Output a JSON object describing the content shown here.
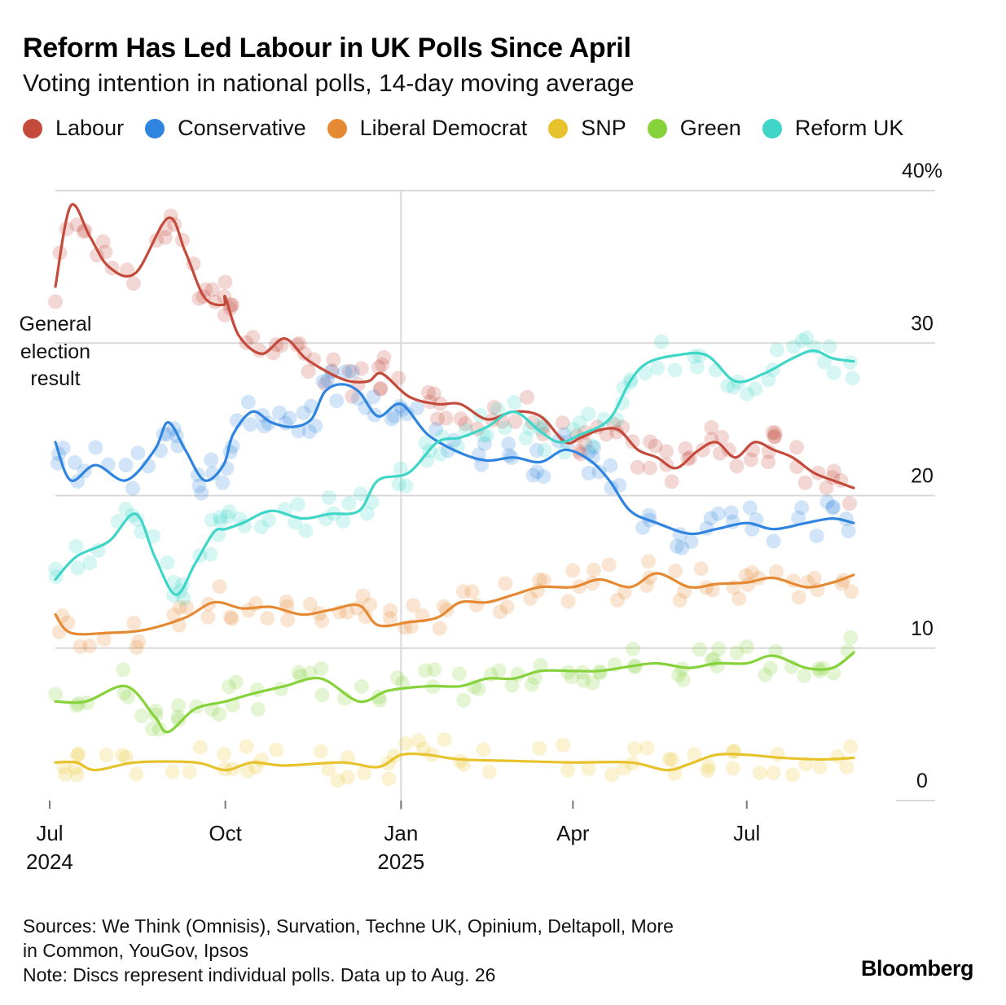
{
  "header": {
    "title": "Reform Has Led Labour in UK Polls Since April",
    "subtitle": "Voting intention in national polls, 14-day moving average"
  },
  "legend": [
    {
      "label": "Labour",
      "color": "#c44a3b"
    },
    {
      "label": "Conservative",
      "color": "#2f84e0"
    },
    {
      "label": "Liberal Democrat",
      "color": "#e58a33"
    },
    {
      "label": "SNP",
      "color": "#e8c22a"
    },
    {
      "label": "Green",
      "color": "#86d23a"
    },
    {
      "label": "Reform UK",
      "color": "#3fd6c8"
    }
  ],
  "annotation": {
    "line1": "General",
    "line2": "election",
    "line3": "result"
  },
  "footer": {
    "sources_line1": "Sources: We Think (Omnisis), Survation, Techne UK, Opinium, Deltapoll, More",
    "sources_line2": "in Common, YouGov, Ipsos",
    "note": "Note: Discs represent individual polls. Data up to Aug. 26",
    "brand": "Bloomberg"
  },
  "chart_data": {
    "type": "line",
    "title": "Reform Has Led Labour in UK Polls Since April",
    "subtitle": "Voting intention in national polls, 14-day moving average",
    "y_unit": "%",
    "ylim": [
      0,
      40
    ],
    "y_ticks": [
      {
        "value": 0,
        "label": "0"
      },
      {
        "value": 10,
        "label": "10"
      },
      {
        "value": 20,
        "label": "20"
      },
      {
        "value": 30,
        "label": "30"
      },
      {
        "value": 40,
        "label": "40%"
      }
    ],
    "x_range": [
      "2024-07-04",
      "2025-08-26"
    ],
    "x_ticks": [
      {
        "date": "2024-07-01",
        "label": "Jul",
        "label2": "2024"
      },
      {
        "date": "2024-10-01",
        "label": "Oct",
        "label2": ""
      },
      {
        "date": "2025-01-01",
        "label": "Jan",
        "label2": "2025"
      },
      {
        "date": "2025-04-01",
        "label": "Apr",
        "label2": ""
      },
      {
        "date": "2025-07-01",
        "label": "Jul",
        "label2": ""
      }
    ],
    "grid": {
      "horizontal": true,
      "vertical_at": "2025-01-01"
    },
    "series": [
      {
        "name": "Labour",
        "color": "#c44a3b",
        "points": [
          [
            "2024-07-04",
            33.7
          ],
          [
            "2024-07-12",
            39.0
          ],
          [
            "2024-07-22",
            37.0
          ],
          [
            "2024-08-01",
            35.0
          ],
          [
            "2024-08-15",
            34.6
          ],
          [
            "2024-09-01",
            38.2
          ],
          [
            "2024-09-10",
            36.0
          ],
          [
            "2024-09-20",
            33.0
          ],
          [
            "2024-09-30",
            32.5
          ],
          [
            "2024-10-01",
            33.0
          ],
          [
            "2024-10-08",
            30.5
          ],
          [
            "2024-10-20",
            29.3
          ],
          [
            "2024-11-01",
            30.3
          ],
          [
            "2024-11-12",
            29.0
          ],
          [
            "2024-11-25",
            28.0
          ],
          [
            "2024-12-05",
            27.5
          ],
          [
            "2024-12-15",
            27.5
          ],
          [
            "2024-12-22",
            28.0
          ],
          [
            "2025-01-05",
            26.5
          ],
          [
            "2025-01-20",
            26.0
          ],
          [
            "2025-02-01",
            26.0
          ],
          [
            "2025-02-15",
            25.0
          ],
          [
            "2025-03-01",
            25.5
          ],
          [
            "2025-03-15",
            25.2
          ],
          [
            "2025-03-28",
            23.5
          ],
          [
            "2025-04-05",
            23.8
          ],
          [
            "2025-04-15",
            24.3
          ],
          [
            "2025-04-25",
            24.3
          ],
          [
            "2025-05-05",
            23.0
          ],
          [
            "2025-05-15",
            22.5
          ],
          [
            "2025-05-25",
            21.8
          ],
          [
            "2025-06-05",
            22.9
          ],
          [
            "2025-06-15",
            23.5
          ],
          [
            "2025-06-25",
            22.5
          ],
          [
            "2025-07-05",
            23.5
          ],
          [
            "2025-07-15",
            23.0
          ],
          [
            "2025-07-25",
            22.5
          ],
          [
            "2025-08-05",
            21.5
          ],
          [
            "2025-08-15",
            21.0
          ],
          [
            "2025-08-26",
            20.5
          ]
        ]
      },
      {
        "name": "Conservative",
        "color": "#2f84e0",
        "points": [
          [
            "2024-07-04",
            23.5
          ],
          [
            "2024-07-12",
            21.0
          ],
          [
            "2024-07-25",
            22.0
          ],
          [
            "2024-08-10",
            21.0
          ],
          [
            "2024-08-25",
            23.0
          ],
          [
            "2024-09-01",
            24.8
          ],
          [
            "2024-09-10",
            23.0
          ],
          [
            "2024-09-20",
            21.0
          ],
          [
            "2024-09-30",
            22.0
          ],
          [
            "2024-10-05",
            24.0
          ],
          [
            "2024-10-15",
            25.5
          ],
          [
            "2024-10-25",
            24.8
          ],
          [
            "2024-11-05",
            24.5
          ],
          [
            "2024-11-15",
            25.0
          ],
          [
            "2024-11-22",
            26.8
          ],
          [
            "2024-12-01",
            27.3
          ],
          [
            "2024-12-10",
            26.8
          ],
          [
            "2024-12-20",
            25.2
          ],
          [
            "2025-01-01",
            26.0
          ],
          [
            "2025-01-15",
            24.0
          ],
          [
            "2025-02-01",
            22.8
          ],
          [
            "2025-02-15",
            22.3
          ],
          [
            "2025-03-01",
            22.5
          ],
          [
            "2025-03-15",
            22.2
          ],
          [
            "2025-03-28",
            23.0
          ],
          [
            "2025-04-10",
            22.3
          ],
          [
            "2025-04-20",
            21.0
          ],
          [
            "2025-05-01",
            19.0
          ],
          [
            "2025-05-15",
            18.2
          ],
          [
            "2025-06-01",
            17.5
          ],
          [
            "2025-06-15",
            17.8
          ],
          [
            "2025-07-01",
            18.2
          ],
          [
            "2025-07-15",
            17.8
          ],
          [
            "2025-08-01",
            18.2
          ],
          [
            "2025-08-15",
            18.5
          ],
          [
            "2025-08-26",
            18.2
          ]
        ]
      },
      {
        "name": "Liberal Democrat",
        "color": "#e58a33",
        "points": [
          [
            "2024-07-04",
            12.2
          ],
          [
            "2024-07-12",
            11.0
          ],
          [
            "2024-08-01",
            11.0
          ],
          [
            "2024-08-20",
            11.2
          ],
          [
            "2024-09-10",
            12.0
          ],
          [
            "2024-09-25",
            13.0
          ],
          [
            "2024-10-10",
            12.6
          ],
          [
            "2024-10-25",
            12.7
          ],
          [
            "2024-11-10",
            12.2
          ],
          [
            "2024-11-25",
            12.5
          ],
          [
            "2024-12-10",
            12.8
          ],
          [
            "2024-12-20",
            11.5
          ],
          [
            "2025-01-05",
            11.7
          ],
          [
            "2025-01-20",
            12.0
          ],
          [
            "2025-02-01",
            13.0
          ],
          [
            "2025-02-15",
            13.0
          ],
          [
            "2025-03-01",
            13.5
          ],
          [
            "2025-03-15",
            14.0
          ],
          [
            "2025-04-01",
            14.0
          ],
          [
            "2025-04-15",
            14.5
          ],
          [
            "2025-05-01",
            14.0
          ],
          [
            "2025-05-15",
            14.9
          ],
          [
            "2025-06-01",
            14.0
          ],
          [
            "2025-06-15",
            14.2
          ],
          [
            "2025-07-01",
            14.3
          ],
          [
            "2025-07-15",
            14.6
          ],
          [
            "2025-08-01",
            14.0
          ],
          [
            "2025-08-15",
            14.3
          ],
          [
            "2025-08-26",
            14.8
          ]
        ]
      },
      {
        "name": "SNP",
        "color": "#e8c22a",
        "points": [
          [
            "2024-07-04",
            2.5
          ],
          [
            "2024-07-15",
            2.5
          ],
          [
            "2024-07-25",
            2.0
          ],
          [
            "2024-08-15",
            2.5
          ],
          [
            "2024-09-15",
            2.5
          ],
          [
            "2024-10-01",
            2.0
          ],
          [
            "2024-10-15",
            2.5
          ],
          [
            "2024-11-01",
            2.3
          ],
          [
            "2024-12-01",
            2.5
          ],
          [
            "2024-12-20",
            2.2
          ],
          [
            "2025-01-01",
            3.0
          ],
          [
            "2025-01-15",
            3.0
          ],
          [
            "2025-02-01",
            2.7
          ],
          [
            "2025-03-01",
            2.6
          ],
          [
            "2025-04-01",
            2.5
          ],
          [
            "2025-05-01",
            2.5
          ],
          [
            "2025-05-20",
            2.0
          ],
          [
            "2025-06-01",
            2.4
          ],
          [
            "2025-06-15",
            3.0
          ],
          [
            "2025-07-01",
            3.0
          ],
          [
            "2025-07-20",
            2.8
          ],
          [
            "2025-08-10",
            2.7
          ],
          [
            "2025-08-26",
            2.8
          ]
        ]
      },
      {
        "name": "Green",
        "color": "#86d23a",
        "points": [
          [
            "2024-07-04",
            6.5
          ],
          [
            "2024-07-20",
            6.5
          ],
          [
            "2024-08-10",
            7.5
          ],
          [
            "2024-08-25",
            5.5
          ],
          [
            "2024-09-01",
            4.5
          ],
          [
            "2024-09-15",
            6.0
          ],
          [
            "2024-10-01",
            6.5
          ],
          [
            "2024-10-15",
            7.0
          ],
          [
            "2024-11-01",
            7.5
          ],
          [
            "2024-11-20",
            8.0
          ],
          [
            "2024-12-10",
            6.5
          ],
          [
            "2024-12-25",
            7.2
          ],
          [
            "2025-01-15",
            7.5
          ],
          [
            "2025-02-01",
            7.5
          ],
          [
            "2025-02-15",
            8.0
          ],
          [
            "2025-03-01",
            8.0
          ],
          [
            "2025-03-15",
            8.5
          ],
          [
            "2025-04-01",
            8.5
          ],
          [
            "2025-04-15",
            8.5
          ],
          [
            "2025-05-01",
            8.8
          ],
          [
            "2025-05-15",
            9.0
          ],
          [
            "2025-06-01",
            8.7
          ],
          [
            "2025-06-15",
            9.0
          ],
          [
            "2025-07-01",
            9.0
          ],
          [
            "2025-07-15",
            9.5
          ],
          [
            "2025-08-01",
            8.7
          ],
          [
            "2025-08-15",
            8.7
          ],
          [
            "2025-08-26",
            9.7
          ]
        ]
      },
      {
        "name": "Reform UK",
        "color": "#3fd6c8",
        "points": [
          [
            "2024-07-04",
            14.5
          ],
          [
            "2024-07-15",
            16.0
          ],
          [
            "2024-08-01",
            17.0
          ],
          [
            "2024-08-15",
            18.8
          ],
          [
            "2024-08-25",
            16.0
          ],
          [
            "2024-09-05",
            13.5
          ],
          [
            "2024-09-15",
            15.5
          ],
          [
            "2024-09-25",
            17.6
          ],
          [
            "2024-10-01",
            17.8
          ],
          [
            "2024-10-10",
            18.2
          ],
          [
            "2024-10-25",
            19.0
          ],
          [
            "2024-11-10",
            18.5
          ],
          [
            "2024-11-25",
            18.8
          ],
          [
            "2024-12-10",
            19.0
          ],
          [
            "2024-12-20",
            21.0
          ],
          [
            "2025-01-05",
            21.5
          ],
          [
            "2025-01-20",
            23.5
          ],
          [
            "2025-02-01",
            23.8
          ],
          [
            "2025-02-15",
            24.5
          ],
          [
            "2025-03-01",
            25.5
          ],
          [
            "2025-03-15",
            24.2
          ],
          [
            "2025-03-25",
            23.5
          ],
          [
            "2025-04-05",
            24.0
          ],
          [
            "2025-04-20",
            25.0
          ],
          [
            "2025-05-01",
            27.5
          ],
          [
            "2025-05-10",
            28.7
          ],
          [
            "2025-05-25",
            29.2
          ],
          [
            "2025-06-10",
            29.2
          ],
          [
            "2025-06-25",
            27.5
          ],
          [
            "2025-07-10",
            28.0
          ],
          [
            "2025-07-25",
            29.0
          ],
          [
            "2025-08-05",
            29.5
          ],
          [
            "2025-08-15",
            29.0
          ],
          [
            "2025-08-26",
            28.8
          ]
        ]
      }
    ]
  }
}
